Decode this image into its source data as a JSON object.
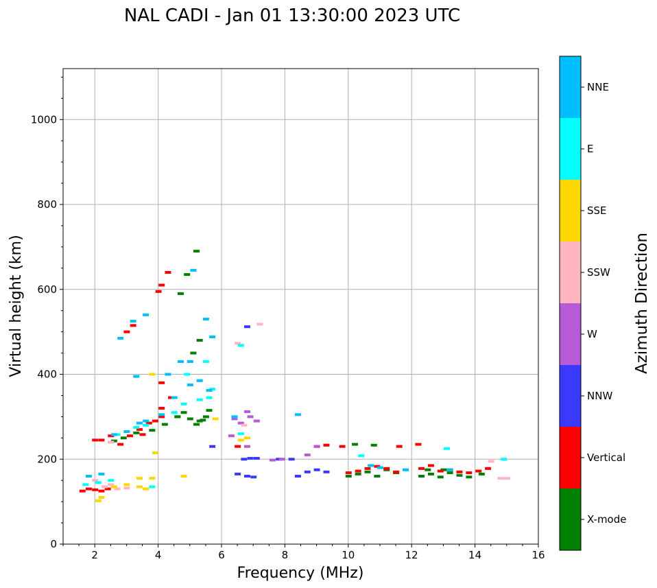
{
  "chart_data": {
    "type": "scatter",
    "title": "NAL CADI - Jan 01 13:30:00 2023 UTC",
    "xlabel": "Frequency (MHz)",
    "ylabel": "Virtual height (km)",
    "xlim": [
      1,
      16
    ],
    "ylim": [
      0,
      1120
    ],
    "xticks": [
      2,
      4,
      6,
      8,
      10,
      12,
      14,
      16
    ],
    "yticks": [
      0,
      200,
      400,
      600,
      800,
      1000
    ],
    "grid": true,
    "colorbar": {
      "label": "Azimuth Direction",
      "categories": [
        {
          "name": "X-mode",
          "color": "#008000"
        },
        {
          "name": "Vertical",
          "color": "#ff0000"
        },
        {
          "name": "NNW",
          "color": "#3a3aff"
        },
        {
          "name": "W",
          "color": "#b55bd6"
        },
        {
          "name": "SSW",
          "color": "#ffb6c1"
        },
        {
          "name": "SSE",
          "color": "#ffd700"
        },
        {
          "name": "E",
          "color": "#00ffff"
        },
        {
          "name": "NNE",
          "color": "#00bfff"
        }
      ]
    },
    "series": [
      {
        "name": "X-mode",
        "color": "#008000",
        "points": [
          [
            2.6,
            243
          ],
          [
            2.9,
            250
          ],
          [
            3.3,
            262
          ],
          [
            3.8,
            268
          ],
          [
            4.2,
            282
          ],
          [
            4.6,
            300
          ],
          [
            4.8,
            310
          ],
          [
            5.0,
            295
          ],
          [
            5.2,
            282
          ],
          [
            5.4,
            292
          ],
          [
            5.6,
            315
          ],
          [
            5.1,
            450
          ],
          [
            5.3,
            480
          ],
          [
            5.2,
            690
          ],
          [
            4.7,
            590
          ],
          [
            4.9,
            635
          ],
          [
            10.0,
            160
          ],
          [
            10.3,
            165
          ],
          [
            10.6,
            170
          ],
          [
            10.9,
            160
          ],
          [
            11.2,
            175
          ],
          [
            11.5,
            168
          ],
          [
            12.3,
            160
          ],
          [
            12.6,
            165
          ],
          [
            12.9,
            158
          ],
          [
            13.2,
            168
          ],
          [
            13.5,
            162
          ],
          [
            13.8,
            158
          ],
          [
            14.2,
            165
          ],
          [
            4.6,
            300
          ],
          [
            5.3,
            290
          ],
          [
            5.5,
            300
          ],
          [
            10.8,
            233
          ],
          [
            10.2,
            235
          ],
          [
            12.5,
            175
          ],
          [
            13.0,
            175
          ]
        ]
      },
      {
        "name": "Vertical",
        "color": "#ff0000",
        "points": [
          [
            1.6,
            125
          ],
          [
            1.8,
            130
          ],
          [
            2.0,
            128
          ],
          [
            2.2,
            125
          ],
          [
            2.4,
            130
          ],
          [
            2.0,
            245
          ],
          [
            2.2,
            245
          ],
          [
            2.5,
            240
          ],
          [
            2.8,
            235
          ],
          [
            3.1,
            255
          ],
          [
            3.4,
            270
          ],
          [
            3.7,
            285
          ],
          [
            3.5,
            258
          ],
          [
            4.1,
            300
          ],
          [
            4.1,
            320
          ],
          [
            3.9,
            290
          ],
          [
            3.0,
            500
          ],
          [
            3.2,
            515
          ],
          [
            4.0,
            595
          ],
          [
            4.1,
            610
          ],
          [
            4.3,
            640
          ],
          [
            4.4,
            345
          ],
          [
            4.1,
            380
          ],
          [
            9.0,
            230
          ],
          [
            9.3,
            233
          ],
          [
            9.8,
            230
          ],
          [
            10.0,
            168
          ],
          [
            10.3,
            172
          ],
          [
            10.6,
            178
          ],
          [
            10.9,
            183
          ],
          [
            11.2,
            178
          ],
          [
            11.5,
            170
          ],
          [
            12.3,
            178
          ],
          [
            12.6,
            185
          ],
          [
            12.9,
            172
          ],
          [
            13.2,
            175
          ],
          [
            13.5,
            170
          ],
          [
            13.8,
            168
          ],
          [
            14.1,
            172
          ],
          [
            14.4,
            178
          ],
          [
            11.6,
            230
          ],
          [
            12.2,
            235
          ],
          [
            6.5,
            230
          ],
          [
            2.5,
            255
          ]
        ]
      },
      {
        "name": "NNW",
        "color": "#3a3aff",
        "points": [
          [
            8.4,
            160
          ],
          [
            8.7,
            170
          ],
          [
            9.0,
            175
          ],
          [
            9.3,
            170
          ],
          [
            6.7,
            200
          ],
          [
            6.9,
            202
          ],
          [
            7.1,
            202
          ],
          [
            7.8,
            200
          ],
          [
            6.8,
            160
          ],
          [
            7.0,
            158
          ],
          [
            5.7,
            230
          ],
          [
            6.8,
            512
          ],
          [
            6.5,
            165
          ],
          [
            8.2,
            200
          ]
        ]
      },
      {
        "name": "W",
        "color": "#b55bd6",
        "points": [
          [
            6.4,
            295
          ],
          [
            6.6,
            285
          ],
          [
            6.9,
            300
          ],
          [
            7.1,
            290
          ],
          [
            6.8,
            312
          ],
          [
            8.7,
            210
          ],
          [
            9.0,
            230
          ],
          [
            7.6,
            198
          ],
          [
            7.9,
            200
          ],
          [
            6.8,
            230
          ],
          [
            6.3,
            255
          ]
        ]
      },
      {
        "name": "SSW",
        "color": "#ffb6c1",
        "points": [
          [
            2.3,
            135
          ],
          [
            2.5,
            140
          ],
          [
            2.7,
            130
          ],
          [
            3.0,
            132
          ],
          [
            2.5,
            240
          ],
          [
            6.7,
            280
          ],
          [
            14.5,
            195
          ],
          [
            14.8,
            155
          ],
          [
            15.0,
            155
          ],
          [
            7.2,
            518
          ],
          [
            6.5,
            473
          ],
          [
            2.0,
            150
          ]
        ]
      },
      {
        "name": "SSE",
        "color": "#ffd700",
        "points": [
          [
            2.2,
            110
          ],
          [
            2.6,
            135
          ],
          [
            3.0,
            140
          ],
          [
            3.4,
            135
          ],
          [
            3.6,
            130
          ],
          [
            3.8,
            155
          ],
          [
            3.4,
            155
          ],
          [
            3.8,
            400
          ],
          [
            5.8,
            295
          ],
          [
            4.8,
            160
          ],
          [
            6.6,
            245
          ],
          [
            6.8,
            250
          ],
          [
            3.9,
            215
          ],
          [
            2.1,
            102
          ]
        ]
      },
      {
        "name": "E",
        "color": "#00ffff",
        "points": [
          [
            1.7,
            140
          ],
          [
            2.1,
            145
          ],
          [
            2.5,
            150
          ],
          [
            3.8,
            135
          ],
          [
            2.7,
            258
          ],
          [
            3.0,
            265
          ],
          [
            3.3,
            275
          ],
          [
            3.6,
            280
          ],
          [
            4.5,
            310
          ],
          [
            4.8,
            330
          ],
          [
            5.3,
            340
          ],
          [
            5.6,
            345
          ],
          [
            5.7,
            365
          ],
          [
            5.5,
            430
          ],
          [
            4.9,
            400
          ],
          [
            6.6,
            468
          ],
          [
            6.6,
            260
          ],
          [
            10.4,
            208
          ],
          [
            13.1,
            225
          ],
          [
            14.9,
            200
          ]
        ]
      },
      {
        "name": "NNE",
        "color": "#00bfff",
        "points": [
          [
            1.8,
            160
          ],
          [
            2.2,
            165
          ],
          [
            2.6,
            258
          ],
          [
            3.0,
            265
          ],
          [
            3.4,
            285
          ],
          [
            3.6,
            290
          ],
          [
            4.1,
            305
          ],
          [
            4.5,
            345
          ],
          [
            5.0,
            375
          ],
          [
            5.3,
            385
          ],
          [
            5.6,
            362
          ],
          [
            5.0,
            430
          ],
          [
            4.7,
            430
          ],
          [
            5.1,
            645
          ],
          [
            5.5,
            530
          ],
          [
            5.7,
            488
          ],
          [
            3.6,
            540
          ],
          [
            3.2,
            525
          ],
          [
            2.8,
            485
          ],
          [
            6.4,
            300
          ],
          [
            8.4,
            305
          ],
          [
            10.7,
            185
          ],
          [
            11.0,
            180
          ],
          [
            11.8,
            175
          ],
          [
            13.2,
            175
          ],
          [
            3.3,
            395
          ],
          [
            4.3,
            400
          ]
        ]
      }
    ]
  }
}
